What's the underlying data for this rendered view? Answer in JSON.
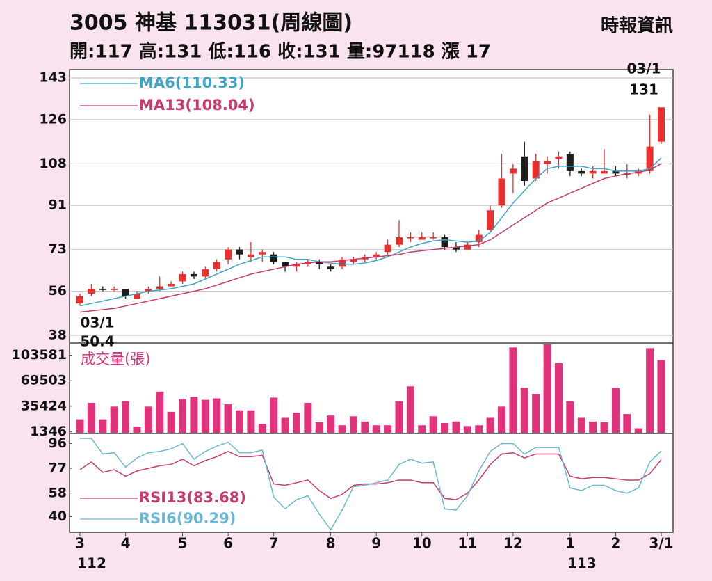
{
  "header": {
    "title": "3005  神基 113031(周線圖)",
    "source": "時報資訊",
    "info": "開:117 高:131 低:116 收:131 量:97118 漲 17"
  },
  "chart_data": [
    {
      "type": "candlestick",
      "categories": [
        "3",
        null,
        null,
        null,
        "4",
        null,
        null,
        null,
        null,
        "5",
        null,
        null,
        null,
        "6",
        null,
        null,
        null,
        "7",
        null,
        null,
        null,
        null,
        "8",
        null,
        null,
        null,
        "9",
        null,
        null,
        null,
        "10",
        null,
        null,
        null,
        "11",
        null,
        null,
        null,
        "12",
        null,
        null,
        null,
        null,
        "1",
        null,
        null,
        null,
        "2",
        null,
        null,
        null,
        "3/1"
      ],
      "years": [
        "112",
        null,
        null,
        null,
        null,
        null,
        null,
        null,
        null,
        null,
        null,
        null,
        null,
        null,
        null,
        null,
        null,
        null,
        null,
        null,
        null,
        null,
        null,
        null,
        null,
        null,
        null,
        null,
        null,
        null,
        null,
        null,
        null,
        null,
        null,
        null,
        null,
        null,
        null,
        null,
        null,
        null,
        null,
        "113",
        null,
        null,
        null,
        null,
        null,
        null,
        null,
        null
      ],
      "open": [
        51,
        55,
        57,
        56.5,
        57,
        53,
        56,
        57,
        58,
        60,
        63,
        62,
        65,
        69,
        73,
        70,
        71,
        71,
        68,
        66,
        67,
        68,
        66,
        66,
        68,
        69,
        70,
        72,
        75,
        78,
        77,
        78,
        78,
        74,
        73,
        76,
        81,
        91,
        104,
        111,
        102,
        108,
        110,
        112,
        105,
        104,
        104,
        105,
        104,
        104,
        105,
        117
      ],
      "high": [
        55,
        59,
        58,
        58,
        57,
        56,
        58,
        62,
        60,
        64,
        64,
        66,
        69,
        74,
        74,
        76,
        73,
        72,
        68,
        68,
        69,
        69,
        67,
        70,
        70,
        71,
        72,
        77,
        85,
        80,
        80,
        80,
        79,
        76,
        76,
        81,
        91,
        112,
        108,
        117,
        112,
        111,
        113,
        113,
        106,
        107,
        114,
        107,
        108,
        106,
        128,
        131
      ],
      "low": [
        50.4,
        54,
        56,
        56,
        53,
        53,
        55,
        56,
        58,
        59,
        61,
        61,
        64,
        67,
        69,
        68,
        68,
        67,
        64,
        64,
        66,
        65,
        64,
        65,
        67,
        68,
        69,
        71,
        74,
        76,
        77,
        77,
        73,
        72,
        73,
        74,
        80,
        90,
        96,
        99,
        101,
        104,
        106,
        103,
        103,
        102,
        104,
        103,
        102,
        103,
        104,
        116
      ],
      "close": [
        54,
        57,
        56.5,
        57,
        54,
        55,
        57,
        58,
        59,
        63,
        62,
        65,
        68,
        73,
        71,
        71,
        72,
        68,
        66,
        67,
        68,
        67,
        65,
        69,
        69,
        70,
        71,
        75,
        78,
        78,
        78,
        78,
        74,
        73,
        75,
        79,
        89,
        102,
        106,
        101,
        109,
        109,
        111,
        105,
        104,
        105,
        105,
        104,
        104,
        105,
        115,
        131
      ],
      "up_color": "#e8302e",
      "down_color": "#1e1e1e",
      "series": [
        {
          "name": "MA6(110.33)",
          "color": "#3fa3c6",
          "values": [
            50,
            51,
            52,
            53,
            54,
            55,
            56,
            56.5,
            57,
            58,
            59,
            61,
            63,
            65,
            67,
            68.5,
            70,
            70,
            70,
            69,
            69,
            68,
            67.5,
            67,
            67,
            67.5,
            68.5,
            70,
            72,
            74,
            75.5,
            76.5,
            77,
            76.5,
            76,
            76.5,
            80,
            86,
            92,
            97,
            102,
            106,
            107,
            107,
            107,
            106,
            106,
            105,
            105,
            105,
            106,
            110.33
          ]
        },
        {
          "name": "MA13(108.04)",
          "color": "#c83a6c",
          "values": [
            47.5,
            48,
            48.5,
            49,
            50,
            51,
            52,
            53,
            54,
            55,
            56,
            57,
            58.5,
            60,
            61.5,
            63,
            64,
            65,
            66,
            67,
            67.5,
            68,
            68,
            68.5,
            69,
            69.5,
            70,
            70.5,
            71,
            72,
            72.5,
            73,
            73.5,
            74,
            74.5,
            75,
            77,
            80,
            83,
            86,
            89,
            92,
            94,
            96,
            98,
            100,
            102,
            103,
            104,
            104.5,
            105.5,
            108.04
          ]
        }
      ],
      "high_note": {
        "date": "03/1",
        "value": 131
      },
      "low_note": {
        "date": "03/1",
        "value": 50.4
      },
      "ylim": [
        38,
        143
      ],
      "yticks": [
        38,
        56,
        73,
        91,
        108,
        126,
        143
      ],
      "grid": true
    },
    {
      "type": "bar",
      "title": "成交量(張)",
      "color": "#e0337b",
      "values": [
        18000,
        40000,
        18000,
        35000,
        42000,
        8000,
        35000,
        55000,
        28000,
        45000,
        48000,
        44000,
        46000,
        38000,
        30000,
        30000,
        12000,
        47000,
        20000,
        27000,
        40000,
        14000,
        23000,
        10000,
        22000,
        15000,
        10000,
        10000,
        42000,
        62000,
        10000,
        22000,
        13000,
        15000,
        9000,
        10000,
        20000,
        35000,
        114000,
        60000,
        52000,
        118000,
        93000,
        42000,
        20000,
        15000,
        14000,
        60000,
        25000,
        6000,
        113000,
        97118
      ],
      "ylim": [
        0,
        118000
      ],
      "yticks": [
        1346,
        35424,
        69503,
        103581
      ]
    },
    {
      "type": "line",
      "series": [
        {
          "name": "RSI13(83.68)",
          "color": "#c83a6c",
          "values": [
            76,
            82,
            74,
            76,
            71,
            75,
            77,
            79,
            80,
            84,
            79,
            83,
            86,
            90,
            86,
            86,
            87,
            65,
            64,
            66,
            68,
            60,
            54,
            57,
            64,
            65,
            65,
            66,
            68,
            68,
            66,
            66,
            54,
            53,
            58,
            68,
            80,
            88,
            89,
            85,
            88,
            88,
            88,
            71,
            69,
            70,
            70,
            69,
            68,
            68,
            73,
            83.68
          ]
        },
        {
          "name": "RSI6(90.29)",
          "color": "#6bb6d2",
          "values": [
            100,
            100,
            88,
            89,
            78,
            85,
            89,
            90,
            92,
            96,
            84,
            90,
            94,
            97,
            89,
            89,
            91,
            55,
            46,
            53,
            56,
            42,
            30,
            45,
            63,
            64,
            66,
            68,
            80,
            84,
            81,
            82,
            46,
            45,
            56,
            75,
            90,
            96,
            96,
            88,
            93,
            93,
            93,
            62,
            60,
            64,
            64,
            60,
            58,
            62,
            82,
            90.29
          ]
        }
      ],
      "ylim": [
        28,
        100
      ],
      "yticks": [
        40,
        58,
        77,
        96
      ]
    }
  ]
}
